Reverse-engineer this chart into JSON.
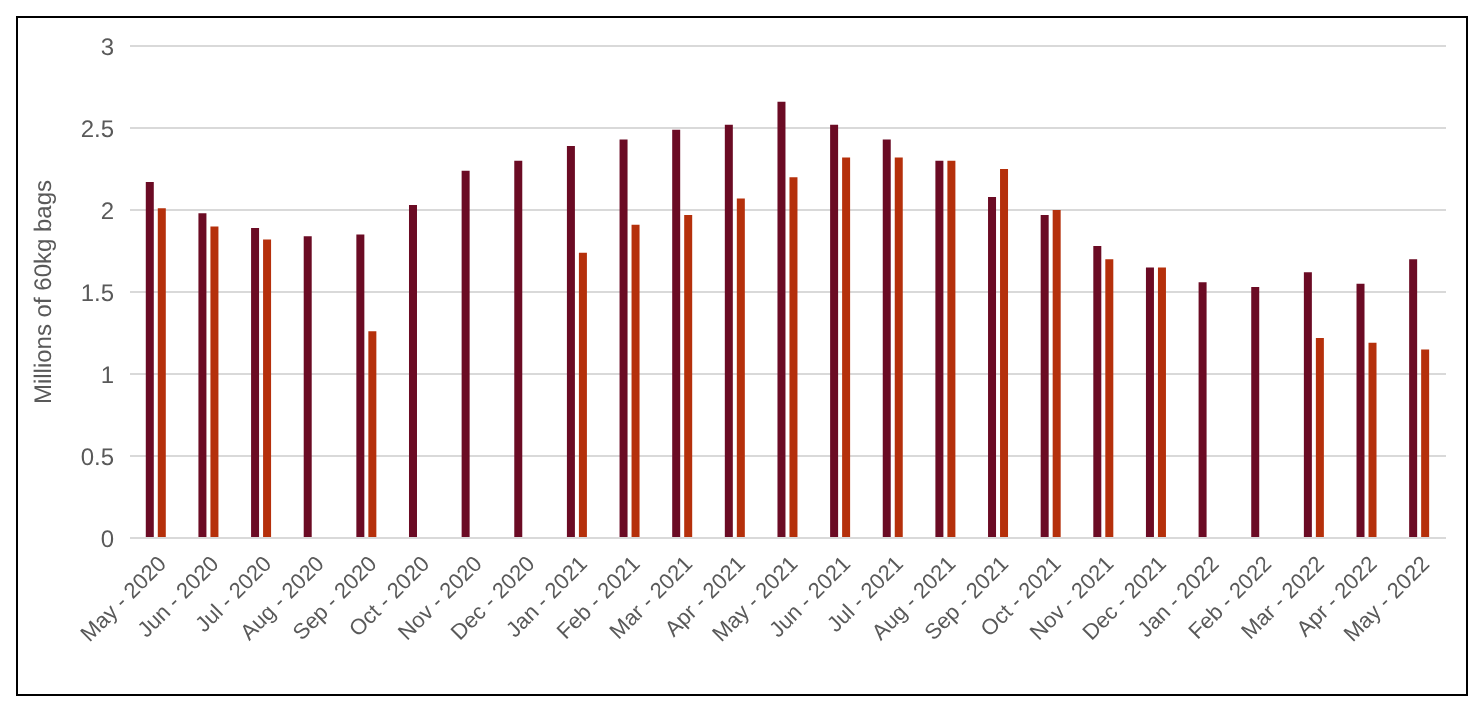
{
  "chart_data": {
    "type": "bar",
    "ylabel": "Millions of 60kg bags",
    "categories": [
      "May - 2020",
      "Jun - 2020",
      "Jul - 2020",
      "Aug - 2020",
      "Sep - 2020",
      "Oct - 2020",
      "Nov - 2020",
      "Dec - 2020",
      "Jan - 2021",
      "Feb - 2021",
      "Mar - 2021",
      "Apr - 2021",
      "May - 2021",
      "Jun - 2021",
      "Jul - 2021",
      "Aug - 2021",
      "Sep - 2021",
      "Oct - 2021",
      "Nov - 2021",
      "Dec - 2021",
      "Jan - 2022",
      "Feb - 2022",
      "Mar - 2022",
      "Apr - 2022",
      "May - 2022"
    ],
    "series": [
      {
        "color": "#6b0b24",
        "values": [
          2.17,
          1.98,
          1.89,
          1.84,
          1.85,
          2.03,
          2.24,
          2.3,
          2.39,
          2.43,
          2.49,
          2.52,
          2.66,
          2.52,
          2.43,
          2.3,
          2.08,
          1.97,
          1.78,
          1.65,
          1.56,
          1.53,
          1.62,
          1.55,
          1.7
        ]
      },
      {
        "color": "#b5300b",
        "values": [
          2.01,
          1.9,
          1.82,
          null,
          1.26,
          null,
          null,
          null,
          1.74,
          1.91,
          1.97,
          2.07,
          2.2,
          2.32,
          2.32,
          2.3,
          2.25,
          2.0,
          1.7,
          1.65,
          null,
          null,
          1.22,
          1.19,
          1.15
        ]
      }
    ],
    "ylim": [
      0,
      3
    ],
    "yticks": [
      0,
      0.5,
      1,
      1.5,
      2,
      2.5,
      3
    ],
    "grid": "y"
  }
}
